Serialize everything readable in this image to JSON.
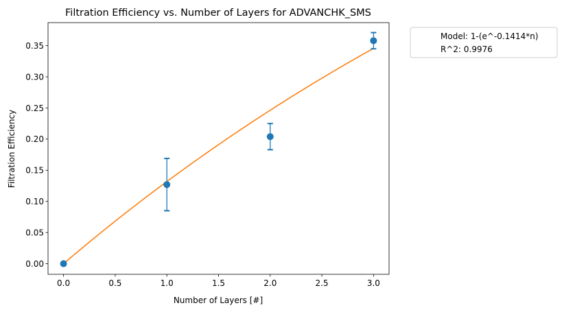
{
  "chart_data": {
    "type": "scatter",
    "title": "Filtration Efficiency vs. Number of Layers for ADVANCHK_SMS",
    "xlabel": "Number of Layers [#]",
    "ylabel": "Filtration Efficiency",
    "xlim": [
      -0.15,
      3.15
    ],
    "ylim": [
      -0.017,
      0.387
    ],
    "xticks": [
      0.0,
      0.5,
      1.0,
      1.5,
      2.0,
      2.5,
      3.0
    ],
    "xtick_labels": [
      "0.0",
      "0.5",
      "1.0",
      "1.5",
      "2.0",
      "2.5",
      "3.0"
    ],
    "yticks": [
      0.0,
      0.05,
      0.1,
      0.15,
      0.2,
      0.25,
      0.3,
      0.35
    ],
    "ytick_labels": [
      "0.00",
      "0.05",
      "0.10",
      "0.15",
      "0.20",
      "0.25",
      "0.30",
      "0.35"
    ],
    "grid": false,
    "legend_position": "outside-top-right",
    "legend": [
      "Model: 1-(e^-0.1414*n)",
      "R^2: 0.9976"
    ],
    "model": {
      "k": 0.1414,
      "x_range": [
        0,
        3
      ],
      "color": "#ff7f0e"
    },
    "series": [
      {
        "type": "errorbar",
        "color": "#1f77b4",
        "points": [
          {
            "x": 0,
            "y": 0.0,
            "err_low": 0.0,
            "err_high": 0.0
          },
          {
            "x": 1,
            "y": 0.127,
            "err_low": 0.042,
            "err_high": 0.042
          },
          {
            "x": 2,
            "y": 0.204,
            "err_low": 0.021,
            "err_high": 0.021
          },
          {
            "x": 3,
            "y": 0.358,
            "err_low": 0.013,
            "err_high": 0.013
          }
        ]
      }
    ]
  }
}
